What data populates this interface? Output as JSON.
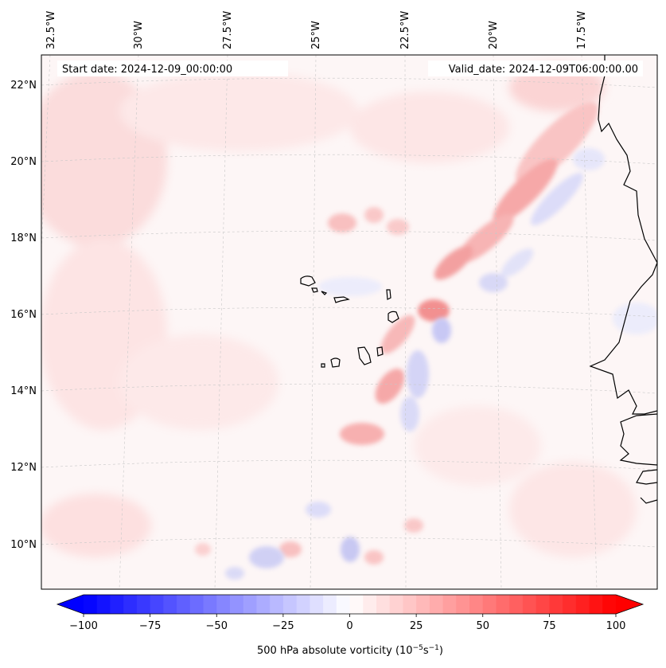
{
  "map": {
    "start_label": "Start date: 2024-12-09_00:00:00",
    "valid_label": "Valid_date: 2024-12-09T06:00:00.00",
    "lon_labels": [
      "32.5°W",
      "30°W",
      "27.5°W",
      "25°W",
      "22.5°W",
      "20°W",
      "17.5°W"
    ],
    "lat_labels": [
      "22°N",
      "20°N",
      "18°N",
      "16°N",
      "14°N",
      "12°N",
      "10°N"
    ],
    "colors": {
      "coastline": "#000000",
      "gridline": "#c8c8c8",
      "background": "#fdf6f6"
    }
  },
  "colorbar": {
    "label_main": "500 hPa absolute vorticity (10",
    "label_exp1": "−5",
    "label_mid": "s",
    "label_exp2": "−1",
    "label_end": ")",
    "tick_labels": [
      "−100",
      "−75",
      "−50",
      "−25",
      "0",
      "25",
      "50",
      "75",
      "100"
    ],
    "min": -100,
    "max": 100,
    "levels": 41,
    "colormap": "bwr",
    "extend": "both"
  }
}
